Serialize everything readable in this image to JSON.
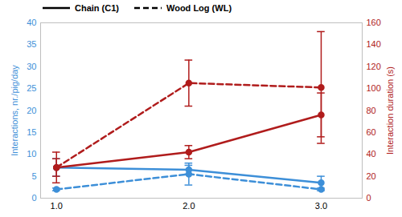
{
  "chart_data": {
    "type": "line",
    "x": [
      1,
      2,
      3
    ],
    "xlim": [
      0.88,
      3.31
    ],
    "xticks": [
      1,
      2,
      3
    ],
    "ylabel": "Interactions, nr./pig/day",
    "y2label": "Interaction duration (s)",
    "ylim": [
      0,
      40
    ],
    "yticks": [
      0,
      5,
      10,
      15,
      20,
      25,
      30,
      35,
      40
    ],
    "y2lim": [
      0,
      160
    ],
    "y2ticks": [
      0,
      20,
      40,
      60,
      80,
      100,
      120,
      140,
      160
    ],
    "legend": "top-left",
    "grid": false,
    "marker": "circle",
    "series": [
      {
        "name": "Chain (C1)",
        "color": "#3d8fd8",
        "line_style": "solid",
        "axis": "y",
        "values": [
          7,
          6.5,
          3.5
        ],
        "errors": [
          2,
          1,
          1.5
        ]
      },
      {
        "name": "Wood Log (WL)",
        "color": "#3d8fd8",
        "line_style": "dashed",
        "axis": "y",
        "values": [
          2,
          5.5,
          2
        ],
        "errors": [
          0.3,
          2.5,
          0.3
        ]
      },
      {
        "name": "Chain (C1)",
        "color": "#b01c1c",
        "line_style": "solid",
        "axis": "y2",
        "values": [
          28,
          42,
          76
        ],
        "errors": [
          8,
          6,
          20
        ]
      },
      {
        "name": "Wood Log (WL)",
        "color": "#b01c1c",
        "line_style": "dashed",
        "axis": "y2",
        "values": [
          28,
          105,
          101
        ],
        "errors": [
          14,
          21,
          51
        ]
      }
    ]
  }
}
